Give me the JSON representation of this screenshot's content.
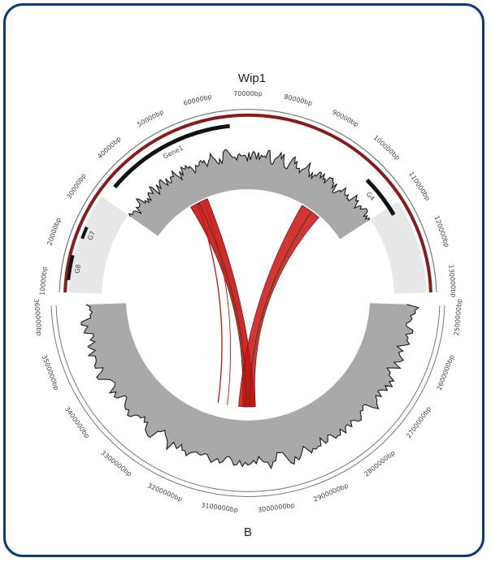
{
  "figure": {
    "top_label": "Wip1",
    "bottom_label": "B",
    "colors": {
      "frame": "#0d3b7a",
      "red_track": "#8b1a1a",
      "link": "#cc1111",
      "signal_fill": "#a9a9a9",
      "signal_line": "#1a1a1a",
      "ring": "#777777"
    },
    "top_ticks": [
      "10000bp",
      "20000bp",
      "30000bp",
      "40000bp",
      "50000bp",
      "60000bp",
      "70000bp",
      "80000bp",
      "90000bp",
      "100000bp",
      "110000bp",
      "120000bp",
      "130000bp"
    ],
    "bottom_ticks": [
      "2500000bp",
      "2600000bp",
      "2700000bp",
      "2800000bp",
      "2900000bp",
      "3000000bp",
      "3100000bp",
      "3200000bp",
      "3300000bp",
      "3400000bp",
      "3500000bp",
      "3600000bp"
    ],
    "gene_labels": [
      "Gene1",
      "G4",
      "G7",
      "G8"
    ]
  }
}
